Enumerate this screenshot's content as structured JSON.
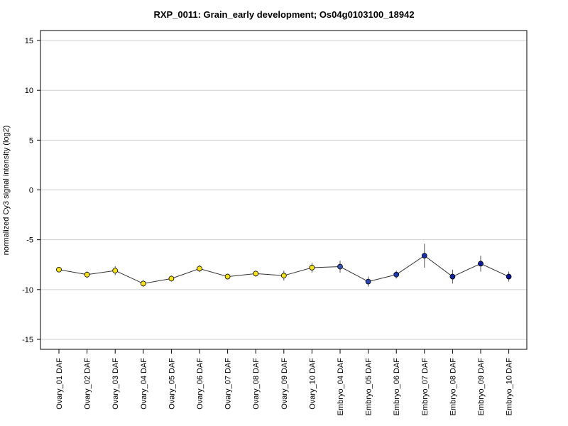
{
  "chart_data": {
    "type": "line",
    "title": "RXP_0011: Grain_early development; Os04g0103100_18942",
    "xlabel": "",
    "ylabel": "normalized Cy3 signal intensity (log2)",
    "ylim": [
      -16,
      16
    ],
    "yticks": [
      -15,
      -10,
      -5,
      0,
      5,
      10,
      15
    ],
    "grid": "horizontal",
    "categories": [
      "Ovary_01 DAF",
      "Ovary_02 DAF",
      "Ovary_03 DAF",
      "Ovary_04 DAF",
      "Ovary_05 DAF",
      "Ovary_06 DAF",
      "Ovary_07 DAF",
      "Ovary_08 DAF",
      "Ovary_09 DAF",
      "Ovary_10 DAF",
      "Embryo_04 DAF",
      "Embryo_05 DAF",
      "Embryo_06 DAF",
      "Embryo_07 DAF",
      "Embryo_08 DAF",
      "Embryo_09 DAF",
      "Embryo_10 DAF"
    ],
    "values": [
      -8.0,
      -8.5,
      -8.1,
      -9.4,
      -8.9,
      -7.9,
      -8.7,
      -8.4,
      -8.6,
      -7.8,
      -7.7,
      -9.2,
      -8.5,
      -6.6,
      -8.7,
      -7.4,
      -8.7
    ],
    "errors": [
      0.1,
      0.35,
      0.45,
      0.35,
      0.3,
      0.35,
      0.2,
      0.3,
      0.5,
      0.5,
      0.6,
      0.5,
      0.4,
      1.2,
      0.7,
      0.8,
      0.5
    ],
    "point_colors": [
      "#f5e11c",
      "#f5e11c",
      "#f5e11c",
      "#f5e11c",
      "#f5e11c",
      "#f5e11c",
      "#f5e11c",
      "#f5e11c",
      "#f5e11c",
      "#f5e11c",
      "#3a55b0",
      "#2b44b5",
      "#1e3bb5",
      "#1a2fa8",
      "#1526a2",
      "#101d9a",
      "#0a1590"
    ]
  }
}
